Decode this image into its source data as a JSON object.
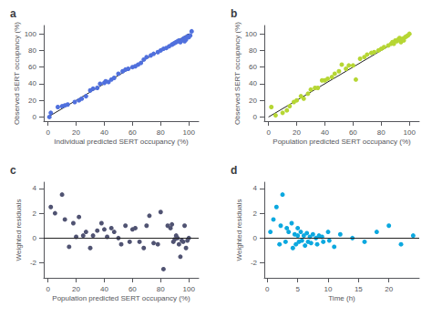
{
  "chart_data": [
    {
      "type": "scatter",
      "title": "a",
      "xlabel": "Individual predicted SERT occupancy (%)",
      "ylabel": "Observed SERT occupancy (%)",
      "xlim": [
        -3,
        107
      ],
      "ylim": [
        -5,
        110
      ],
      "xticks": [
        0,
        20,
        40,
        60,
        80,
        100
      ],
      "yticks": [
        0,
        20,
        40,
        60,
        80,
        100
      ],
      "grid": false,
      "series": [
        {
          "type": "scatter",
          "x": [
            1,
            2,
            7,
            10,
            12,
            14,
            19,
            22,
            24,
            27,
            30,
            32,
            35,
            37,
            40,
            41,
            43,
            45,
            47,
            50,
            53,
            55,
            57,
            60,
            62,
            64,
            66,
            68,
            70,
            73,
            75,
            78,
            80,
            82,
            84,
            86,
            88,
            89,
            90,
            91,
            92,
            93,
            94,
            95,
            96,
            97,
            97,
            98,
            99,
            100,
            101,
            102
          ],
          "values": [
            0,
            5,
            12,
            13,
            14,
            15,
            18,
            20,
            22,
            25,
            32,
            34,
            35,
            40,
            41,
            43,
            42,
            45,
            47,
            52,
            55,
            57,
            58,
            60,
            61,
            63,
            65,
            69,
            72,
            74,
            76,
            78,
            80,
            82,
            83,
            85,
            87,
            88,
            89,
            90,
            91,
            92,
            90,
            92,
            94,
            91,
            95,
            93,
            97,
            96,
            98,
            103
          ]
        },
        {
          "type": "line",
          "x": [
            0,
            100
          ],
          "values": [
            0,
            100
          ],
          "color": "#222222"
        }
      ]
    },
    {
      "type": "scatter",
      "title": "b",
      "xlabel": "Population predicted SERT occupancy (%)",
      "ylabel": "Observed SERT occupancy (%)",
      "xlim": [
        -3,
        107
      ],
      "ylim": [
        -5,
        110
      ],
      "xticks": [
        0,
        20,
        40,
        60,
        80,
        100
      ],
      "yticks": [
        0,
        20,
        40,
        60,
        80,
        100
      ],
      "grid": false,
      "series": [
        {
          "type": "scatter",
          "x": [
            2,
            5,
            10,
            13,
            15,
            18,
            20,
            23,
            25,
            28,
            30,
            33,
            35,
            38,
            40,
            42,
            45,
            47,
            50,
            52,
            55,
            57,
            60,
            62,
            65,
            68,
            70,
            73,
            75,
            78,
            80,
            82,
            85,
            87,
            88,
            89,
            90,
            91,
            92,
            93,
            94,
            95,
            96,
            97,
            98,
            99,
            100
          ],
          "values": [
            12,
            2,
            5,
            8,
            13,
            18,
            20,
            25,
            22,
            28,
            33,
            35,
            35,
            44,
            44,
            46,
            48,
            52,
            55,
            63,
            58,
            62,
            62,
            45,
            70,
            72,
            75,
            77,
            78,
            80,
            82,
            84,
            86,
            88,
            90,
            88,
            92,
            91,
            93,
            95,
            90,
            94,
            92,
            96,
            97,
            98,
            100
          ]
        },
        {
          "type": "line",
          "x": [
            0,
            100
          ],
          "values": [
            0,
            100
          ],
          "color": "#222222"
        }
      ]
    },
    {
      "type": "scatter",
      "title": "c",
      "xlabel": "Population predicted SERT occupancy (%)",
      "ylabel": "Weighted residuals",
      "xlim": [
        -3,
        107
      ],
      "ylim": [
        -3.2,
        4.5
      ],
      "xticks": [
        0,
        20,
        40,
        60,
        80,
        100
      ],
      "yticks": [
        -2,
        0,
        2,
        4
      ],
      "grid": false,
      "series": [
        {
          "type": "scatter",
          "x": [
            2,
            5,
            10,
            12,
            15,
            18,
            20,
            22,
            25,
            27,
            30,
            32,
            35,
            38,
            40,
            42,
            45,
            47,
            50,
            52,
            55,
            58,
            60,
            62,
            65,
            68,
            70,
            72,
            75,
            78,
            80,
            82,
            85,
            87,
            88,
            89,
            90,
            91,
            92,
            93,
            94,
            95,
            96,
            97,
            98,
            99,
            100
          ],
          "values": [
            2.5,
            2.0,
            3.5,
            1.5,
            -0.7,
            1.2,
            0.1,
            1.7,
            0.2,
            0.5,
            -0.8,
            0.2,
            0.6,
            1.2,
            0.7,
            0.1,
            0.8,
            0.5,
            0.0,
            -0.5,
            1.0,
            -0.3,
            0.7,
            0.8,
            -0.3,
            -0.8,
            1.0,
            1.8,
            -0.4,
            -0.5,
            2.1,
            -2.5,
            1.0,
            0.8,
            1.1,
            -0.3,
            -0.1,
            0.2,
            0.0,
            -0.5,
            -1.5,
            -0.2,
            -0.3,
            1.0,
            -0.8,
            -0.2,
            0.0
          ]
        },
        {
          "type": "hline",
          "values": [
            0
          ],
          "color": "#222222"
        }
      ]
    },
    {
      "type": "scatter",
      "title": "d",
      "xlabel": "Time (h)",
      "ylabel": "Weighted residuals",
      "xlim": [
        -0.5,
        25
      ],
      "ylim": [
        -3.2,
        4.5
      ],
      "xticks": [
        0,
        5,
        10,
        15,
        20
      ],
      "yticks": [
        -2,
        0,
        2,
        4
      ],
      "grid": false,
      "series": [
        {
          "type": "scatter",
          "x": [
            0.5,
            1,
            1.5,
            2,
            2.2,
            2.5,
            3,
            3.2,
            3.5,
            4,
            4.2,
            4.5,
            4.7,
            5,
            5,
            5.2,
            5.5,
            5.7,
            6,
            6.2,
            6.5,
            6.7,
            7,
            7.2,
            7.5,
            8,
            8.2,
            8.5,
            9,
            9.2,
            10,
            10.2,
            11,
            12,
            14,
            16,
            18,
            20,
            22,
            24
          ],
          "values": [
            0.5,
            1.5,
            2.5,
            -0.5,
            1.0,
            3.5,
            -0.3,
            0.8,
            0.5,
            1.2,
            -0.8,
            0.3,
            -0.5,
            0.2,
            0.8,
            -0.3,
            0.5,
            -0.2,
            0.2,
            -0.6,
            0.4,
            -0.3,
            0.1,
            -0.4,
            0.3,
            0.0,
            -0.5,
            0.2,
            0.1,
            -0.3,
            0.5,
            -0.2,
            -0.7,
            0.3,
            0.0,
            -0.3,
            0.5,
            1.0,
            -0.5,
            0.2
          ]
        },
        {
          "type": "hline",
          "values": [
            0
          ],
          "color": "#222222"
        }
      ]
    }
  ]
}
